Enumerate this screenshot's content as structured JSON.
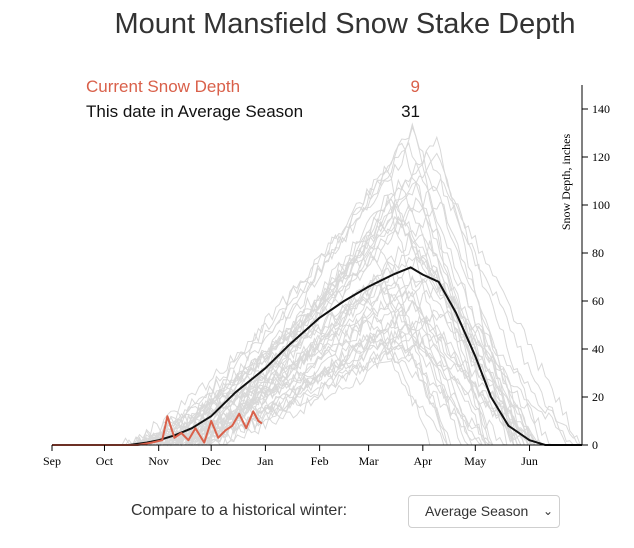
{
  "title": "Mount Mansfield Snow Stake Depth",
  "stats": {
    "current_label": "Current Snow Depth",
    "current_value": "9",
    "average_label": "This date in Average Season",
    "average_value": "31"
  },
  "compare": {
    "label": "Compare to a historical winter:",
    "selected": "Average Season"
  },
  "colors": {
    "current": "#d9604a",
    "average": "#111111",
    "historical": "#d9d9d9",
    "axis": "#000000"
  },
  "chart_data": {
    "type": "line",
    "title": "Mount Mansfield Snow Stake Depth",
    "xlabel": "",
    "ylabel": "Snow Depth, inches",
    "x_unit": "month",
    "month_ticks": [
      "Sep",
      "Oct",
      "Nov",
      "Dec",
      "Jan",
      "Feb",
      "Mar",
      "Apr",
      "May",
      "Jun"
    ],
    "xlim": [
      "Sep 1",
      "Jul 1"
    ],
    "ylim": [
      0,
      150
    ],
    "y_ticks": [
      0,
      20,
      40,
      60,
      80,
      100,
      120,
      140
    ],
    "y_axis_side": "right",
    "grid": false,
    "series": [
      {
        "name": "Average Season",
        "x": [
          "Sep 1",
          "Oct 15",
          "Oct 25",
          "Nov 1",
          "Nov 10",
          "Nov 20",
          "Dec 1",
          "Dec 15",
          "Jan 1",
          "Jan 15",
          "Feb 1",
          "Feb 15",
          "Mar 1",
          "Mar 15",
          "Mar 25",
          "Apr 1",
          "Apr 10",
          "Apr 20",
          "May 1",
          "May 10",
          "May 20",
          "Jun 1",
          "Jun 10",
          "Jul 1"
        ],
        "values": [
          0,
          0,
          1,
          2,
          4,
          7,
          12,
          22,
          32,
          42,
          53,
          60,
          66,
          71,
          74,
          71,
          68,
          55,
          37,
          20,
          8,
          2,
          0,
          0
        ]
      },
      {
        "name": "Current Snow Depth",
        "x": [
          "Sep 1",
          "Oct 20",
          "Oct 28",
          "Nov 3",
          "Nov 6",
          "Nov 10",
          "Nov 14",
          "Nov 18",
          "Nov 22",
          "Nov 27",
          "Dec 1",
          "Dec 5",
          "Dec 9",
          "Dec 13",
          "Dec 17",
          "Dec 21",
          "Dec 25",
          "Dec 28",
          "Dec 30"
        ],
        "values": [
          0,
          0,
          1,
          2,
          12,
          3,
          5,
          2,
          7,
          1,
          10,
          3,
          6,
          8,
          13,
          7,
          14,
          10,
          9
        ]
      }
    ]
  }
}
